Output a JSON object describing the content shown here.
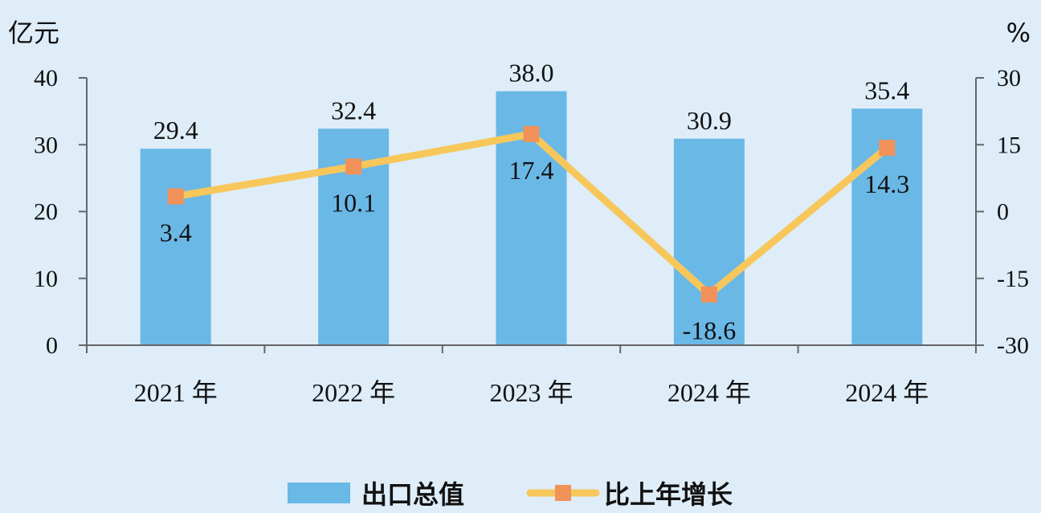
{
  "chart_data": {
    "type": "bar+line",
    "categories": [
      "2021 年",
      "2022 年",
      "2023 年",
      "2024 年",
      "2024 年"
    ],
    "left_unit": "亿元",
    "right_unit": "%",
    "left_axis": {
      "min": 0,
      "max": 40,
      "step": 10,
      "ticks": [
        "0",
        "10",
        "20",
        "30",
        "40"
      ]
    },
    "right_axis": {
      "min": -30,
      "max": 30,
      "step": 15,
      "ticks": [
        "-30",
        "-15",
        "0",
        "15",
        "30"
      ]
    },
    "series": [
      {
        "name": "出口总值",
        "type": "bar",
        "axis": "left",
        "values": [
          29.4,
          32.4,
          38.0,
          30.9,
          35.4
        ],
        "labels": [
          "29.4",
          "32.4",
          "38.0",
          "30.9",
          "35.4"
        ],
        "color": "#6ab8e6"
      },
      {
        "name": "比上年增长",
        "type": "line",
        "axis": "right",
        "values": [
          3.4,
          10.1,
          17.4,
          -18.6,
          14.3
        ],
        "labels": [
          "3.4",
          "10.1",
          "17.4",
          "-18.6",
          "14.3"
        ],
        "color": "#f7c75b",
        "marker_color": "#f0925a"
      }
    ],
    "legend_position": "bottom",
    "grid": false
  }
}
